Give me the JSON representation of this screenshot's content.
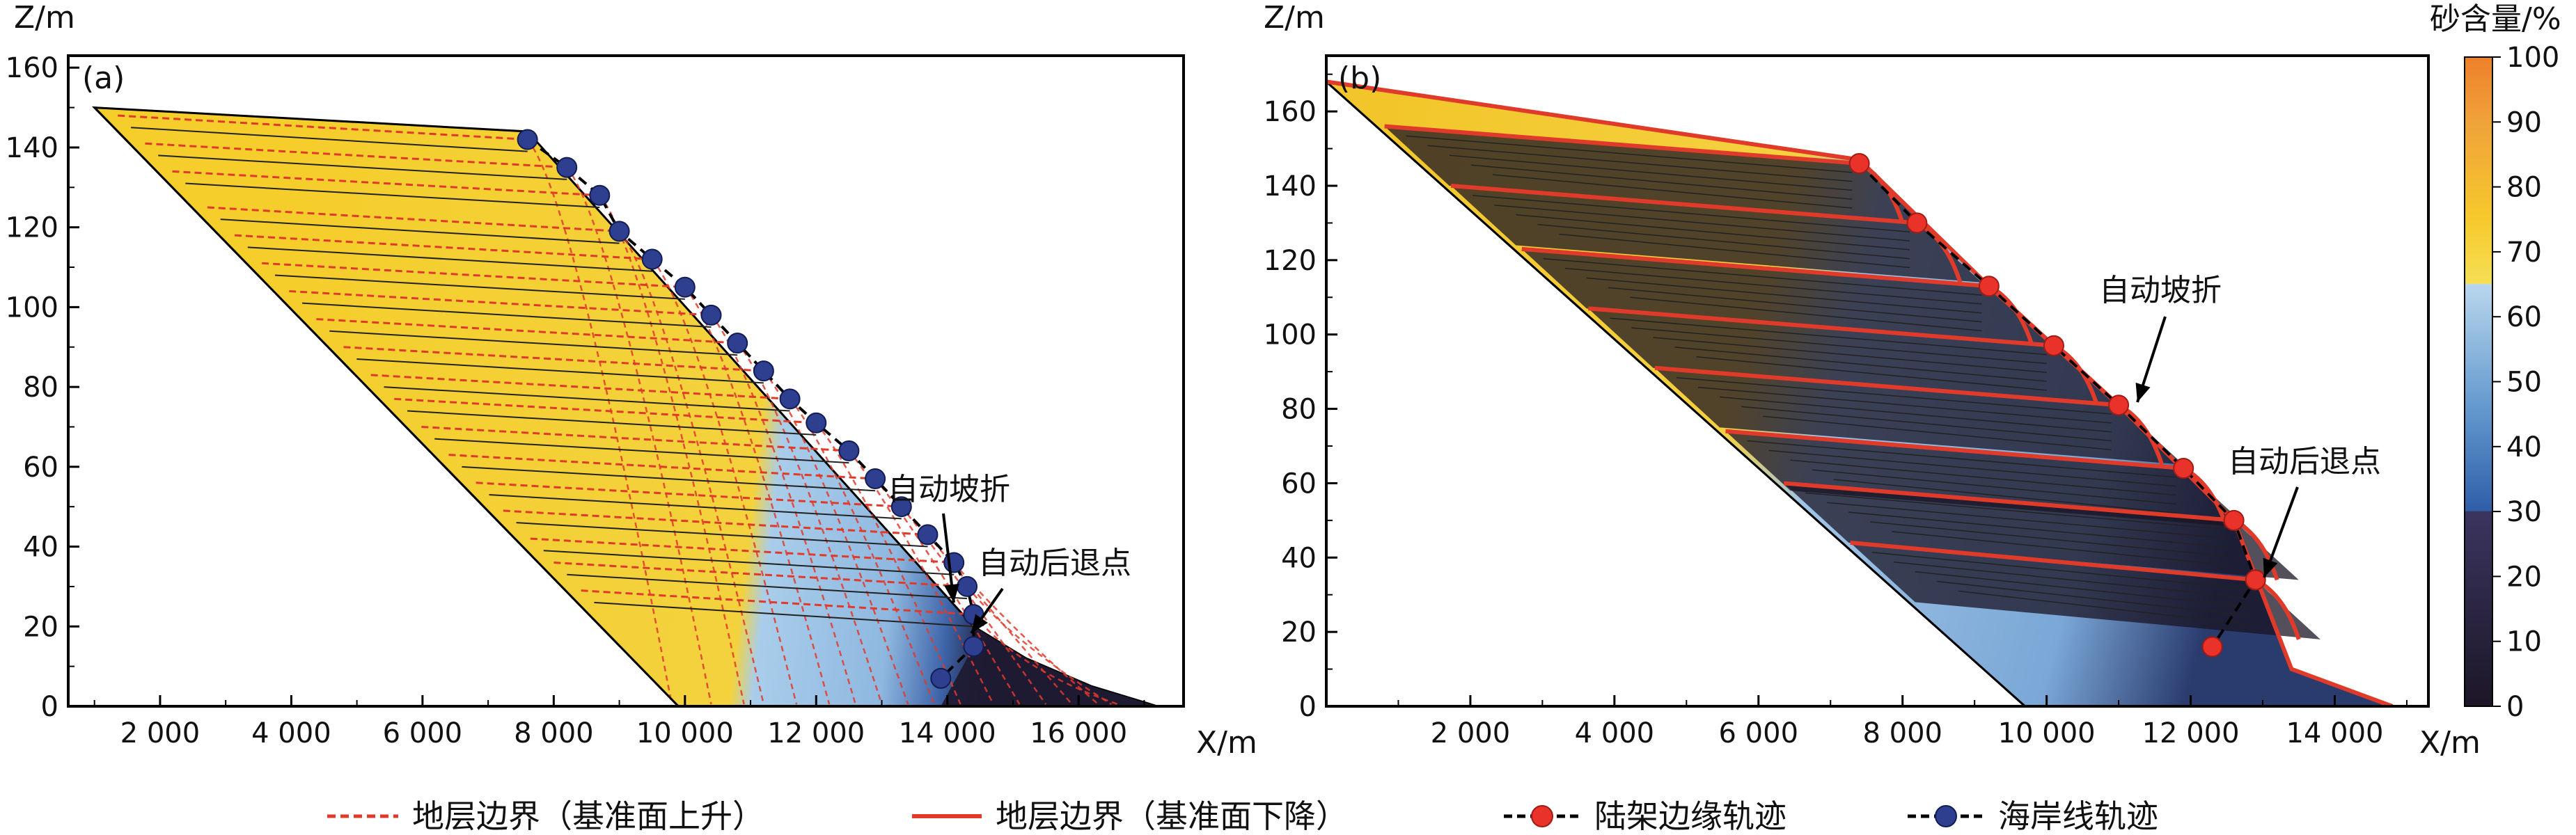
{
  "colors": {
    "sand_high": "#f5ce2c",
    "sand_mid": "#9fc4e6",
    "sand_low": "#2a1f3d",
    "boundary_rise": "#e03a2a",
    "boundary_fall": "#e03a2a",
    "shelf_marker": "#e8322a",
    "shore_marker": "#2e3f8f"
  },
  "colorbar": {
    "title": "砂含量/%",
    "ticks": [
      "0",
      "10",
      "20",
      "30",
      "40",
      "50",
      "60",
      "70",
      "80",
      "90",
      "100"
    ]
  },
  "legend": [
    {
      "label": "地层边界（基准面上升）",
      "style": "dashed-red"
    },
    {
      "label": "地层边界（基准面下降）",
      "style": "solid-red"
    },
    {
      "label": "陆架边缘轨迹",
      "style": "dashed-black-red-dot"
    },
    {
      "label": "海岸线轨迹",
      "style": "dashed-black-blue-dot"
    }
  ],
  "chart_data": [
    {
      "type": "area",
      "panel_label": "(a)",
      "ylabel": "Z/m",
      "xlabel": "X/m",
      "xlim": [
        600,
        17600
      ],
      "ylim": [
        0,
        163
      ],
      "xticks": [
        2000,
        4000,
        6000,
        8000,
        10000,
        12000,
        14000,
        16000
      ],
      "xtick_labels": [
        "2 000",
        "4 000",
        "6 000",
        "8 000",
        "10 000",
        "12 000",
        "14 000",
        "16 000"
      ],
      "yticks": [
        0,
        20,
        40,
        60,
        80,
        100,
        120,
        140,
        160
      ],
      "ytick_labels": [
        "0",
        "20",
        "40",
        "60",
        "80",
        "100",
        "120",
        "140",
        "160"
      ],
      "annotations": [
        {
          "text": "自动坡折",
          "at": [
            14500,
            26
          ]
        },
        {
          "text": "自动后退点",
          "at": [
            14800,
            18
          ]
        }
      ],
      "shoreline_trajectory": [
        [
          7600,
          142
        ],
        [
          8200,
          135
        ],
        [
          8700,
          128
        ],
        [
          9000,
          119
        ],
        [
          9500,
          112
        ],
        [
          10000,
          105
        ],
        [
          10400,
          98
        ],
        [
          10800,
          91
        ],
        [
          11200,
          84
        ],
        [
          11600,
          77
        ],
        [
          12000,
          71
        ],
        [
          12500,
          64
        ],
        [
          12900,
          57
        ],
        [
          13300,
          50
        ],
        [
          13700,
          43
        ],
        [
          14100,
          36
        ],
        [
          14300,
          30
        ],
        [
          14400,
          23
        ],
        [
          14400,
          15
        ],
        [
          13900,
          7
        ]
      ],
      "profile_top": [
        [
          1000,
          150
        ],
        [
          7600,
          144
        ],
        [
          14400,
          20
        ],
        [
          15200,
          12
        ],
        [
          16200,
          5
        ],
        [
          17200,
          0
        ]
      ]
    },
    {
      "type": "area",
      "panel_label": "(b)",
      "ylabel": "Z/m",
      "xlabel": "X/m",
      "xlim": [
        0,
        15300
      ],
      "ylim": [
        0,
        175
      ],
      "xticks": [
        2000,
        4000,
        6000,
        8000,
        10000,
        12000,
        14000
      ],
      "xtick_labels": [
        "2 000",
        "4 000",
        "6 000",
        "8 000",
        "10 000",
        "12 000",
        "14 000"
      ],
      "yticks": [
        0,
        20,
        40,
        60,
        80,
        100,
        120,
        140,
        160
      ],
      "ytick_labels": [
        "0",
        "20",
        "40",
        "60",
        "80",
        "100",
        "120",
        "140",
        "160"
      ],
      "annotations": [
        {
          "text": "自动坡折",
          "at": [
            11000,
            80
          ]
        },
        {
          "text": "自动后退点",
          "at": [
            12800,
            34
          ]
        }
      ],
      "shelf_edge_trajectory": [
        [
          7400,
          146
        ],
        [
          8200,
          130
        ],
        [
          9200,
          113
        ],
        [
          10100,
          97
        ],
        [
          11000,
          81
        ],
        [
          11900,
          64
        ],
        [
          12600,
          50
        ],
        [
          12900,
          34
        ],
        [
          12300,
          16
        ]
      ],
      "profile_top": [
        [
          0,
          168
        ],
        [
          7400,
          147
        ],
        [
          9200,
          113
        ],
        [
          11000,
          81
        ],
        [
          12600,
          50
        ],
        [
          13000,
          30
        ],
        [
          13400,
          10
        ],
        [
          14800,
          0
        ]
      ]
    }
  ]
}
